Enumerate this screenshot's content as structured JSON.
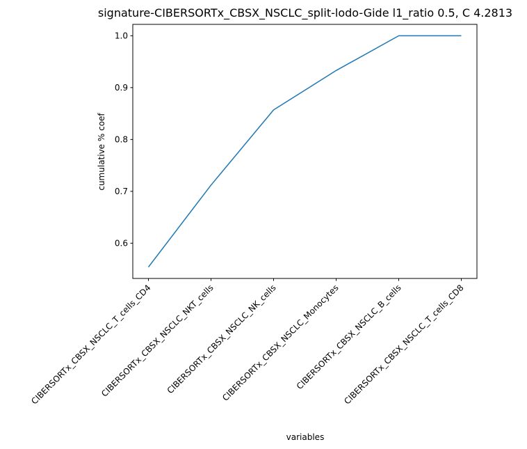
{
  "chart_data": {
    "type": "line",
    "title": "signature-CIBERSORTx_CBSX_NSCLC_split-lodo-Gide l1_ratio 0.5, C 4.2813",
    "xlabel": "variables",
    "ylabel": "cumulative % coef",
    "categories": [
      "CIBERSORTx_CBSX_NSCLC_T_cells_CD4",
      "CIBERSORTx_CBSX_NSCLC_NKT_cells",
      "CIBERSORTx_CBSX_NSCLC_NK_cells",
      "CIBERSORTx_CBSX_NSCLC_Monocytes",
      "CIBERSORTx_CBSX_NSCLC_B_cells",
      "CIBERSORTx_CBSX_NSCLC_T_cells_CD8"
    ],
    "series": [
      {
        "values": [
          0.554,
          0.712,
          0.857,
          0.933,
          1.0,
          1.0
        ]
      }
    ],
    "yticks": [
      0.6,
      0.7,
      0.8,
      0.9,
      1.0
    ],
    "ytick_labels": [
      "0.6",
      "0.7",
      "0.8",
      "0.9",
      "1.0"
    ],
    "ylim": [
      0.532,
      1.022
    ],
    "grid": false,
    "legend": "none",
    "line_color": "#1f77b4"
  }
}
